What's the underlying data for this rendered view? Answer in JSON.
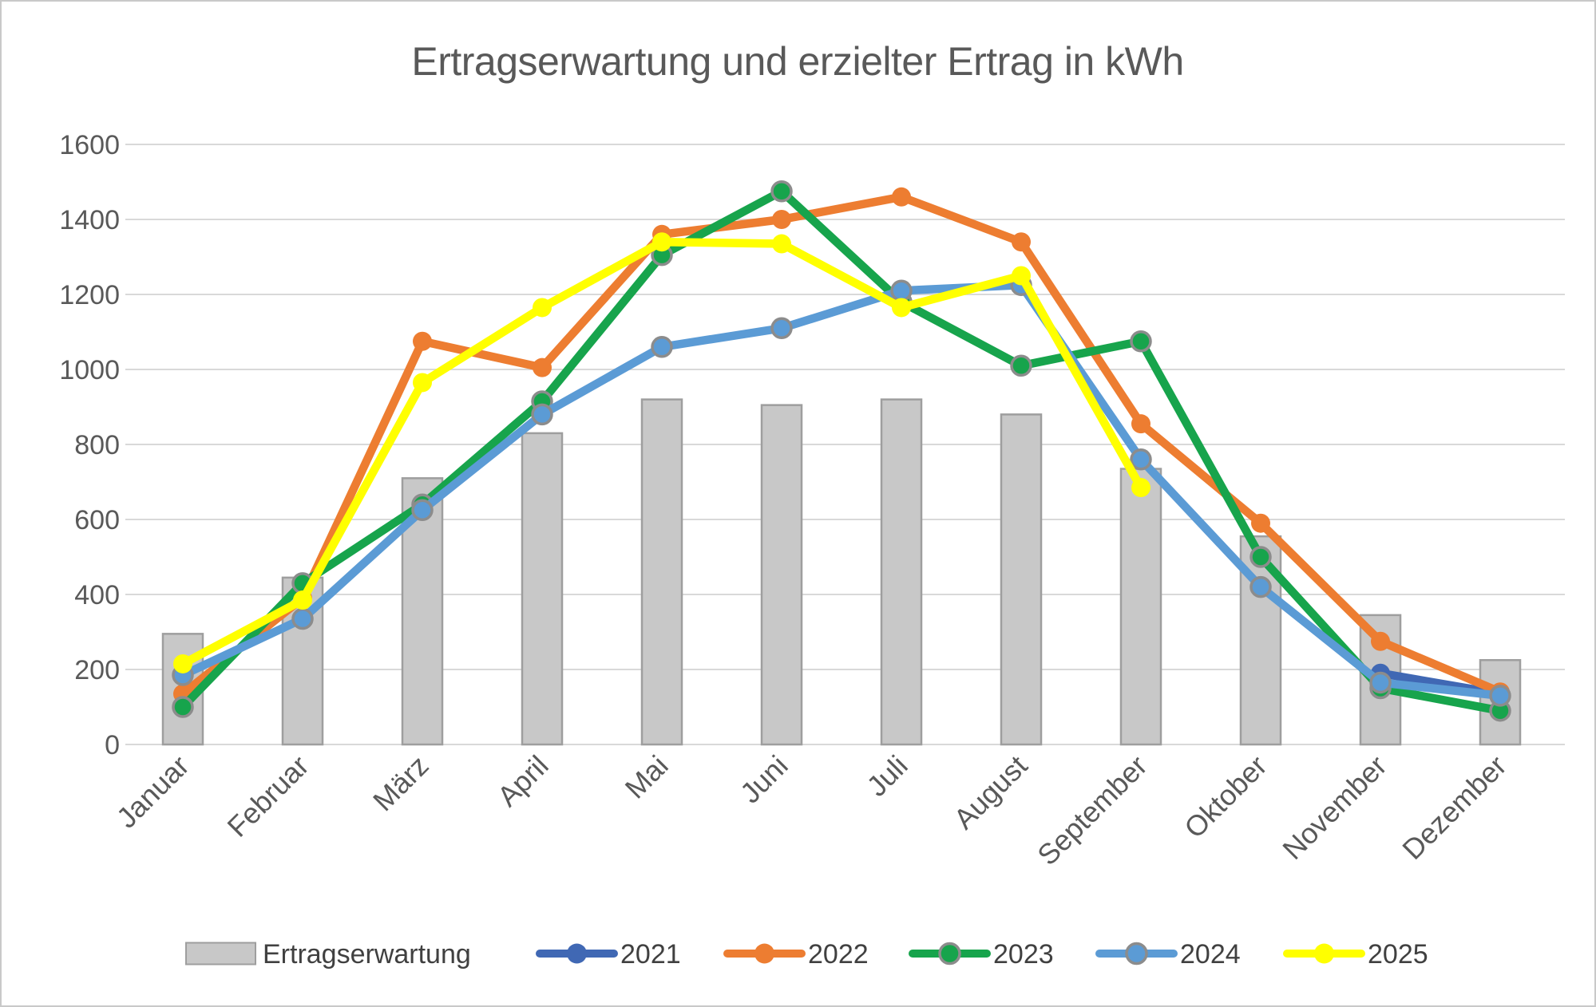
{
  "chart_data": {
    "type": "bar+line combo",
    "title": "Ertragserwartung und erzielter Ertrag in kWh",
    "unit": "kWh",
    "categories": [
      "Januar",
      "Februar",
      "März",
      "April",
      "Mai",
      "Juni",
      "Juli",
      "August",
      "September",
      "Oktober",
      "November",
      "Dezember"
    ],
    "bar_series": {
      "name": "Ertragserwartung",
      "fill": "#C8C8C8",
      "border": "#9E9E9E",
      "values": [
        295,
        445,
        710,
        830,
        920,
        905,
        920,
        880,
        735,
        555,
        345,
        225
      ]
    },
    "line_series": [
      {
        "name": "2021",
        "color": "#4068B4",
        "marker_ring": null,
        "values": [
          null,
          null,
          null,
          null,
          null,
          null,
          null,
          null,
          null,
          null,
          190,
          135
        ]
      },
      {
        "name": "2022",
        "color": "#ED7D31",
        "marker_ring": null,
        "values": [
          135,
          390,
          1075,
          1005,
          1360,
          1400,
          1460,
          1340,
          855,
          590,
          275,
          140
        ]
      },
      {
        "name": "2023",
        "color": "#17A44C",
        "marker_ring": "#8C8C8C",
        "values": [
          100,
          430,
          640,
          915,
          1305,
          1475,
          1180,
          1010,
          1075,
          500,
          150,
          90
        ]
      },
      {
        "name": "2024",
        "color": "#5B9BD5",
        "marker_ring": "#8C8C8C",
        "values": [
          185,
          335,
          625,
          880,
          1060,
          1110,
          1210,
          1225,
          760,
          420,
          165,
          130
        ]
      },
      {
        "name": "2025",
        "color": "#FFFF00",
        "marker_ring": null,
        "values": [
          215,
          385,
          965,
          1165,
          1340,
          1335,
          1165,
          1250,
          685,
          null,
          null,
          null
        ]
      }
    ],
    "y_axis": {
      "min": 0,
      "max": 1600,
      "step": 200,
      "tick_labels": [
        "0",
        "200",
        "400",
        "600",
        "800",
        "1000",
        "1200",
        "1400",
        "1600"
      ]
    },
    "x_axis": {
      "label_rotation_deg": 45
    },
    "legend": {
      "position": "bottom",
      "items": [
        "Ertragserwartung",
        "2021",
        "2022",
        "2023",
        "2024",
        "2025"
      ]
    },
    "grid": true,
    "colors": {
      "gridline": "#D9D9D9",
      "axis_text": "#595959",
      "title_text": "#595959",
      "legend_text": "#404040",
      "background": "#FFFFFF",
      "frame_border": "#C9C9C9"
    }
  }
}
